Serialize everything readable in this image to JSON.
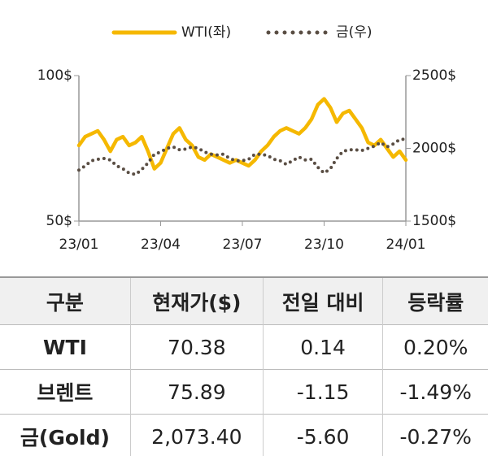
{
  "chart_data": {
    "type": "line",
    "categories": [
      "23/01",
      null,
      null,
      null,
      null,
      null,
      null,
      null,
      null,
      null,
      null,
      null,
      null,
      "23/04",
      null,
      null,
      null,
      null,
      null,
      null,
      null,
      null,
      null,
      null,
      null,
      null,
      "23/07",
      null,
      null,
      null,
      null,
      null,
      null,
      null,
      null,
      null,
      null,
      null,
      null,
      "23/10",
      null,
      null,
      null,
      null,
      null,
      null,
      null,
      null,
      null,
      null,
      null,
      null,
      "24/01"
    ],
    "series": [
      {
        "name": "WTI(좌)",
        "color": "#f5b800",
        "axis": "y",
        "values": [
          76,
          79,
          80,
          81,
          78,
          74,
          78,
          79,
          76,
          77,
          79,
          74,
          68,
          70,
          75,
          80,
          82,
          78,
          76,
          72,
          71,
          73,
          72,
          71,
          70,
          71,
          70,
          69,
          71,
          74,
          76,
          79,
          81,
          82,
          81,
          80,
          82,
          85,
          90,
          92,
          89,
          84,
          87,
          88,
          85,
          82,
          77,
          76,
          78,
          75,
          72,
          74,
          71
        ]
      },
      {
        "name": "금(우)",
        "color": "#5a4e44",
        "axis": "y2",
        "values": [
          1850,
          1880,
          1915,
          1925,
          1930,
          1920,
          1880,
          1860,
          1830,
          1820,
          1855,
          1900,
          1960,
          1975,
          2000,
          2010,
          1990,
          1995,
          2010,
          2000,
          1975,
          1960,
          1955,
          1960,
          1930,
          1915,
          1915,
          1925,
          1960,
          1960,
          1950,
          1925,
          1915,
          1890,
          1915,
          1940,
          1920,
          1925,
          1870,
          1830,
          1860,
          1930,
          1980,
          1990,
          1990,
          1985,
          2000,
          2015,
          2040,
          2010,
          2030,
          2060,
          2065
        ]
      }
    ],
    "ylim": [
      50,
      100
    ],
    "yticks": [
      {
        "value": 50,
        "label": "50$"
      },
      {
        "value": 100,
        "label": "100$"
      }
    ],
    "y2lim": [
      1500,
      2500
    ],
    "y2ticks": [
      {
        "value": 1500,
        "label": "1500$"
      },
      {
        "value": 2000,
        "label": "2000$"
      },
      {
        "value": 2500,
        "label": "2500$"
      }
    ],
    "legend": "top"
  },
  "table": {
    "header": [
      "구분",
      "현재가($)",
      "전일 대비",
      "등락률"
    ],
    "rows": [
      [
        "WTI",
        "70.38",
        "0.14",
        "0.20%"
      ],
      [
        "브렌트",
        "75.89",
        "-1.15",
        "-1.49%"
      ],
      [
        "금(Gold)",
        "2,073.40",
        "-5.60",
        "-0.27%"
      ]
    ]
  }
}
